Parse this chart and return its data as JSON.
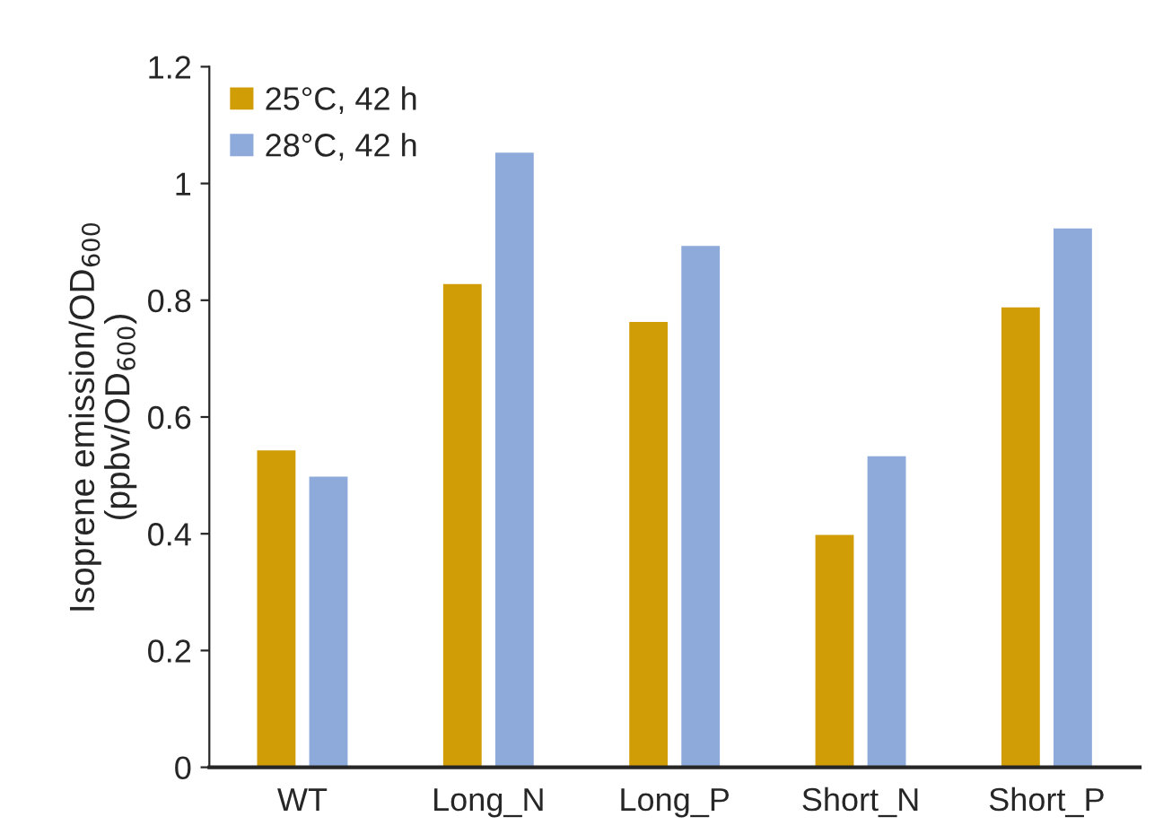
{
  "chart_data": {
    "type": "bar",
    "ylabel": "Isoprene emission/OD$_{600}$\n(ppbv/OD$_{600}$)",
    "categories": [
      "WT",
      "Long_N",
      "Long_P",
      "Short_N",
      "Short_P"
    ],
    "series": [
      {
        "name": "25°C, 42 h",
        "color": "#d19d06",
        "values": [
          0.545,
          0.83,
          0.765,
          0.4,
          0.79
        ]
      },
      {
        "name": "28°C, 42 h",
        "color": "#8eaadb",
        "values": [
          0.5,
          1.055,
          0.895,
          0.535,
          0.925
        ]
      }
    ],
    "ylim": [
      0,
      1.2
    ],
    "yticks": [
      0,
      {
        "value": 0.2,
        "label": "0.2"
      },
      {
        "value": 0.4,
        "label": "0.4"
      },
      {
        "value": 0.6,
        "label": "0.6"
      },
      {
        "value": 0.8,
        "label": "0.8"
      },
      1,
      {
        "value": 1.2,
        "label": "1.2"
      }
    ],
    "grid": false,
    "legend": "top left"
  }
}
